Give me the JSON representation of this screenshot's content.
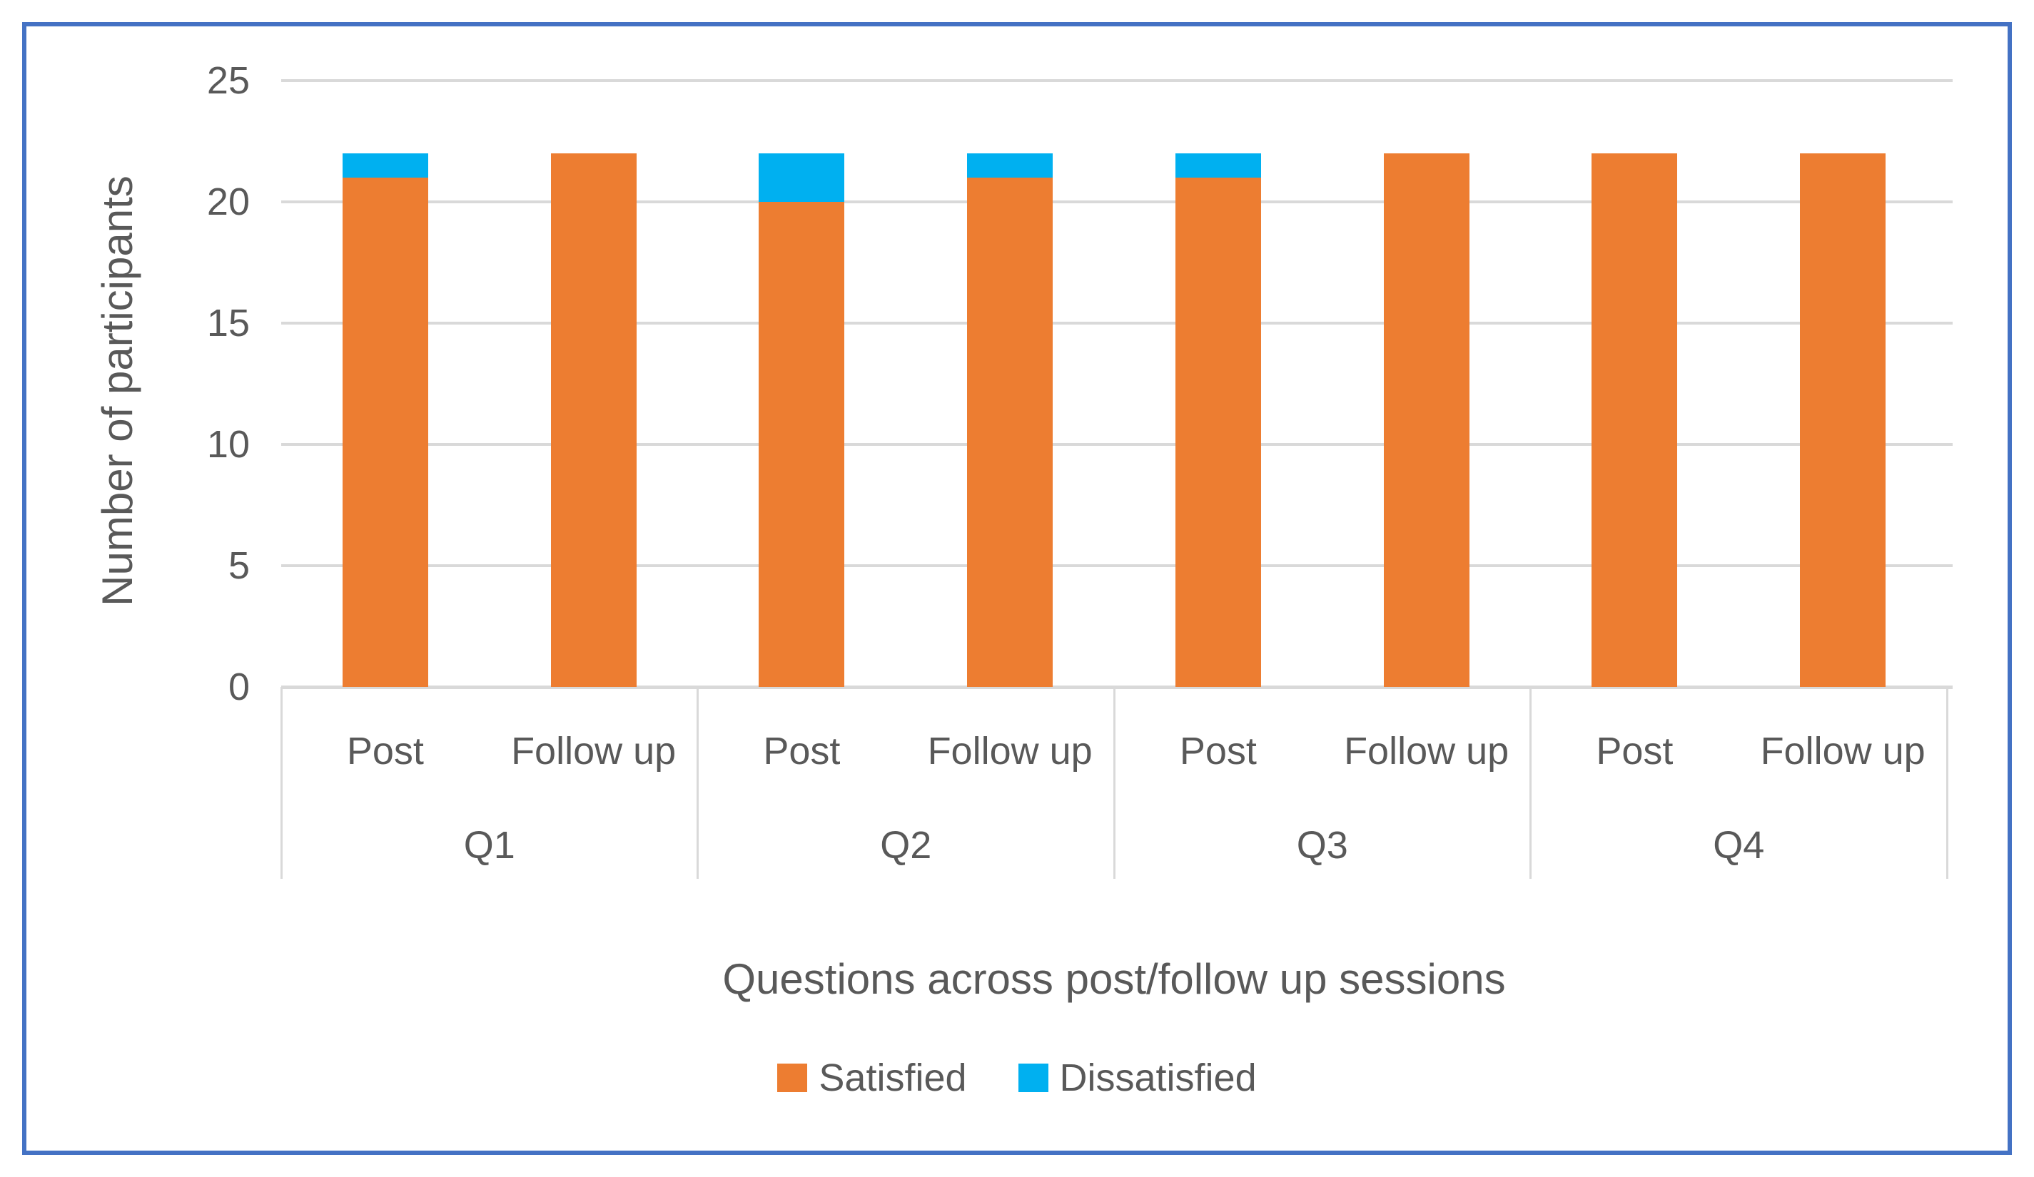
{
  "figure": {
    "background": "#FFFFFF",
    "border_color": "#4472C4",
    "gridline_color": "#D9D9D9",
    "text_color": "#595959"
  },
  "chart_data": {
    "type": "bar",
    "stacked": true,
    "title": "",
    "xlabel": "Questions across post/follow up sessions",
    "ylabel": "Number of participants",
    "ylim": [
      0,
      25
    ],
    "yticks": [
      0,
      5,
      10,
      15,
      20,
      25
    ],
    "grid": true,
    "legend_position": "bottom",
    "x_groups": [
      {
        "label": "Q1",
        "sessions": [
          "Post",
          "Follow up"
        ]
      },
      {
        "label": "Q2",
        "sessions": [
          "Post",
          "Follow up"
        ]
      },
      {
        "label": "Q3",
        "sessions": [
          "Post",
          "Follow up"
        ]
      },
      {
        "label": "Q4",
        "sessions": [
          "Post",
          "Follow up"
        ]
      }
    ],
    "series": [
      {
        "name": "Satisfied",
        "color": "#ED7D31",
        "values": [
          21,
          22,
          20,
          21,
          21,
          22,
          22,
          22
        ]
      },
      {
        "name": "Dissatisfied",
        "color": "#00B0F0",
        "values": [
          1,
          0,
          2,
          1,
          1,
          0,
          0,
          0
        ]
      }
    ]
  }
}
